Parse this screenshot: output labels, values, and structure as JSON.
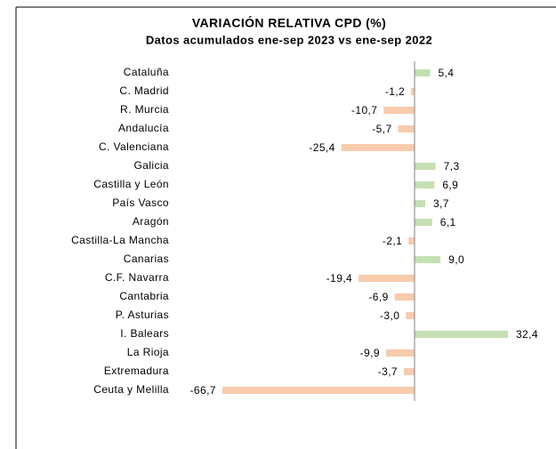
{
  "chart_data": {
    "type": "hbar",
    "title": "VARIACIÓN RELATIVA CPD (%)",
    "subtitle": "Datos acumulados ene-sep 2023 vs ene-sep 2022",
    "categories": [
      "Cataluña",
      "C. Madrid",
      "R. Murcia",
      "Andalucía",
      "C. Valenciana",
      "Galicia",
      "Castilla y León",
      "País Vasco",
      "Aragón",
      "Castilla-La Mancha",
      "Canarias",
      "C.F. Navarra",
      "Cantabria",
      "P. Asturias",
      "I. Balears",
      "La Rioja",
      "Extremadura",
      "Ceuta y Melilla"
    ],
    "values": [
      5.4,
      -1.2,
      -10.7,
      -5.7,
      -25.4,
      7.3,
      6.9,
      3.7,
      6.1,
      -2.1,
      9.0,
      -19.4,
      -6.9,
      -3.0,
      32.4,
      -9.9,
      -3.7,
      -66.7
    ],
    "value_labels": [
      "5,4",
      "-1,2",
      "-10,7",
      "-5,7",
      "-25,4",
      "7,3",
      "6,9",
      "3,7",
      "6,1",
      "-2,1",
      "9,0",
      "-19,4",
      "-6,9",
      "-3,0",
      "32,4",
      "-9,9",
      "-3,7",
      "-66,7"
    ],
    "positive_color": "#c5e0b3",
    "negative_color": "#f8cbad"
  }
}
